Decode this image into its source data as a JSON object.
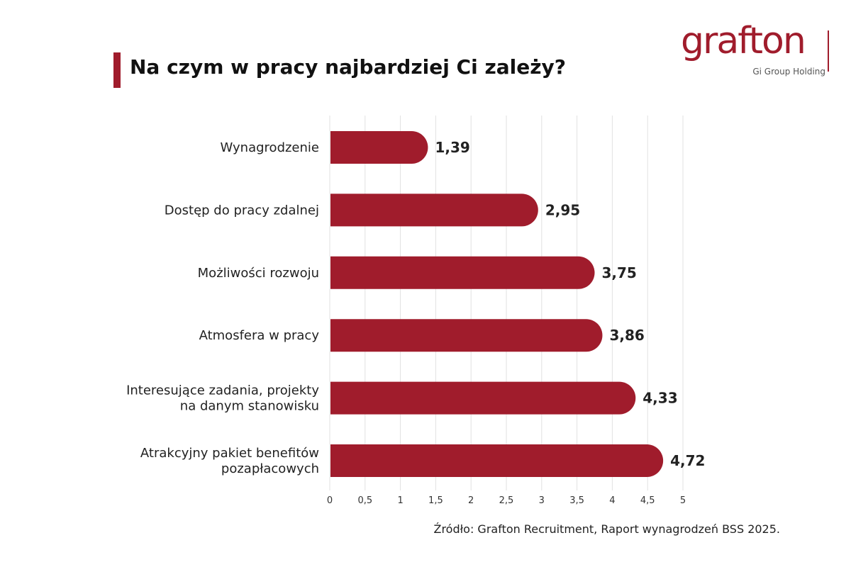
{
  "header": {
    "title": "Na czym w pracy najbardziej Ci zależy?",
    "logo_word": "grafton",
    "logo_sub": "Gi Group Holding"
  },
  "source": "Źródło: Grafton Recruitment, Raport wynagrodzeń BSS 2025.",
  "colors": {
    "bar": "#a01c2c",
    "accent": "#a01c2c",
    "grid": "#e2e2e2"
  },
  "chart_data": {
    "type": "bar",
    "orientation": "horizontal",
    "title": "Na czym w pracy najbardziej Ci zależy?",
    "categories": [
      [
        "Wynagrodzenie"
      ],
      [
        "Dostęp do pracy zdalnej"
      ],
      [
        "Możliwości rozwoju"
      ],
      [
        "Atmosfera w pracy"
      ],
      [
        "Interesujące zadania, projekty",
        "na danym stanowisku"
      ],
      [
        "Atrakcyjny pakiet benefitów",
        "pozapłacowych"
      ]
    ],
    "values": [
      1.39,
      2.95,
      3.75,
      3.86,
      4.33,
      4.72
    ],
    "value_labels": [
      "1,39",
      "2,95",
      "3,75",
      "3,86",
      "4,33",
      "4,72"
    ],
    "xlim": [
      0,
      5
    ],
    "ticks": [
      0,
      0.5,
      1,
      1.5,
      2,
      2.5,
      3,
      3.5,
      4,
      4.5,
      5
    ],
    "tick_labels": [
      "0",
      "0,5",
      "1",
      "1,5",
      "2",
      "2,5",
      "3",
      "3,5",
      "4",
      "4,5",
      "5"
    ],
    "grid": true,
    "legend": "none"
  }
}
